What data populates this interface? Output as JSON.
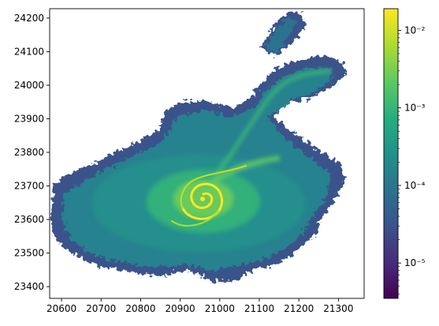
{
  "chart_data": {
    "type": "heatmap",
    "title": "",
    "xlabel": "",
    "ylabel": "",
    "xlim": [
      20570,
      21365
    ],
    "ylim": [
      23365,
      24228
    ],
    "x_ticks": [
      20600,
      20700,
      20800,
      20900,
      21000,
      21100,
      21200,
      21300
    ],
    "x_tick_labels": [
      "20600",
      "20700",
      "20800",
      "20900",
      "21000",
      "21100",
      "21200",
      "21300"
    ],
    "y_ticks": [
      23400,
      23500,
      23600,
      23700,
      23800,
      23900,
      24000,
      24100,
      24200
    ],
    "y_tick_labels": [
      "23400",
      "23500",
      "23600",
      "23700",
      "23800",
      "23900",
      "24000",
      "24100",
      "24200"
    ],
    "colormap": "viridis",
    "colorbar": {
      "scale": "log",
      "range": [
        3.5e-06,
        0.019
      ],
      "ticks": [
        1e-05,
        0.0001,
        0.001,
        0.01
      ],
      "tick_labels": [
        "10⁻⁵",
        "10⁻⁴",
        "10⁻³",
        "10⁻²"
      ]
    },
    "grid": false,
    "background_color": "#ffffff",
    "features": {
      "vortex_center": [
        20955,
        23665
      ],
      "main_blob_center": [
        20935,
        23660
      ],
      "filament_end": [
        21290,
        24030
      ]
    }
  }
}
